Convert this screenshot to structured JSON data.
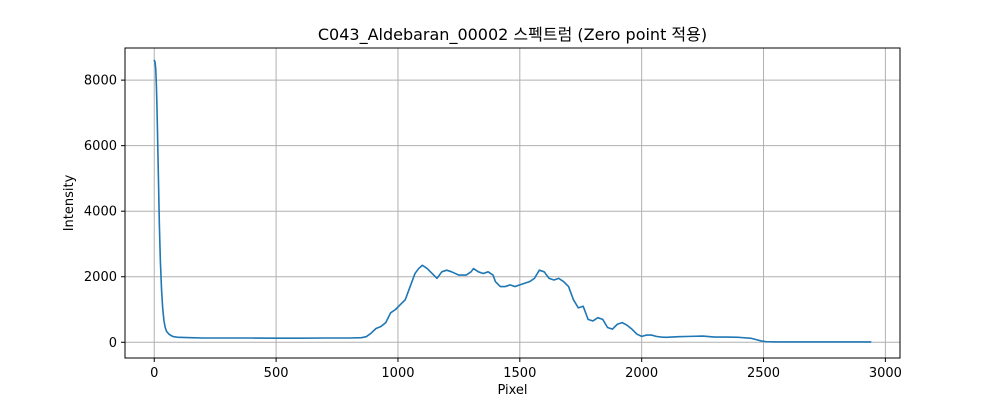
{
  "chart_data": {
    "type": "line",
    "title": "C043_Aldebaran_00002 스펙트럼 (Zero point 적용)",
    "xlabel": "Pixel",
    "ylabel": "Intensity",
    "xlim": [
      -120,
      3060
    ],
    "ylim": [
      -480,
      8980
    ],
    "xticks": [
      0,
      500,
      1000,
      1500,
      2000,
      2500,
      3000
    ],
    "yticks": [
      0,
      2000,
      4000,
      6000,
      8000
    ],
    "grid": true,
    "legend": "none",
    "series": [
      {
        "color": "#1f77b4",
        "points": [
          [
            0,
            8600
          ],
          [
            3,
            8560
          ],
          [
            6,
            8350
          ],
          [
            9,
            7800
          ],
          [
            12,
            6900
          ],
          [
            15,
            5800
          ],
          [
            18,
            4700
          ],
          [
            21,
            3600
          ],
          [
            25,
            2500
          ],
          [
            30,
            1600
          ],
          [
            35,
            1000
          ],
          [
            40,
            650
          ],
          [
            45,
            450
          ],
          [
            50,
            340
          ],
          [
            60,
            250
          ],
          [
            70,
            200
          ],
          [
            80,
            170
          ],
          [
            100,
            150
          ],
          [
            150,
            140
          ],
          [
            200,
            130
          ],
          [
            300,
            130
          ],
          [
            400,
            130
          ],
          [
            500,
            125
          ],
          [
            600,
            125
          ],
          [
            700,
            130
          ],
          [
            800,
            130
          ],
          [
            850,
            140
          ],
          [
            870,
            170
          ],
          [
            890,
            280
          ],
          [
            910,
            420
          ],
          [
            930,
            480
          ],
          [
            950,
            600
          ],
          [
            970,
            900
          ],
          [
            990,
            1000
          ],
          [
            1010,
            1150
          ],
          [
            1030,
            1300
          ],
          [
            1050,
            1700
          ],
          [
            1070,
            2100
          ],
          [
            1085,
            2250
          ],
          [
            1100,
            2350
          ],
          [
            1120,
            2250
          ],
          [
            1140,
            2100
          ],
          [
            1160,
            1950
          ],
          [
            1180,
            2150
          ],
          [
            1200,
            2200
          ],
          [
            1220,
            2150
          ],
          [
            1250,
            2050
          ],
          [
            1280,
            2050
          ],
          [
            1300,
            2150
          ],
          [
            1310,
            2250
          ],
          [
            1330,
            2150
          ],
          [
            1350,
            2100
          ],
          [
            1370,
            2150
          ],
          [
            1390,
            2050
          ],
          [
            1400,
            1850
          ],
          [
            1420,
            1700
          ],
          [
            1440,
            1700
          ],
          [
            1460,
            1750
          ],
          [
            1480,
            1700
          ],
          [
            1500,
            1750
          ],
          [
            1520,
            1800
          ],
          [
            1540,
            1850
          ],
          [
            1560,
            1950
          ],
          [
            1580,
            2200
          ],
          [
            1600,
            2150
          ],
          [
            1620,
            1950
          ],
          [
            1640,
            1900
          ],
          [
            1660,
            1950
          ],
          [
            1680,
            1850
          ],
          [
            1700,
            1700
          ],
          [
            1720,
            1300
          ],
          [
            1740,
            1050
          ],
          [
            1760,
            1100
          ],
          [
            1780,
            700
          ],
          [
            1800,
            650
          ],
          [
            1820,
            750
          ],
          [
            1840,
            700
          ],
          [
            1860,
            450
          ],
          [
            1880,
            400
          ],
          [
            1900,
            550
          ],
          [
            1920,
            600
          ],
          [
            1940,
            520
          ],
          [
            1960,
            400
          ],
          [
            1980,
            250
          ],
          [
            2000,
            180
          ],
          [
            2020,
            220
          ],
          [
            2040,
            220
          ],
          [
            2060,
            180
          ],
          [
            2080,
            160
          ],
          [
            2100,
            150
          ],
          [
            2120,
            160
          ],
          [
            2150,
            170
          ],
          [
            2200,
            180
          ],
          [
            2250,
            190
          ],
          [
            2300,
            160
          ],
          [
            2350,
            160
          ],
          [
            2400,
            150
          ],
          [
            2450,
            120
          ],
          [
            2470,
            80
          ],
          [
            2490,
            40
          ],
          [
            2510,
            20
          ],
          [
            2550,
            10
          ],
          [
            2600,
            10
          ],
          [
            2700,
            10
          ],
          [
            2800,
            10
          ],
          [
            2900,
            10
          ],
          [
            2940,
            10
          ]
        ]
      }
    ]
  }
}
